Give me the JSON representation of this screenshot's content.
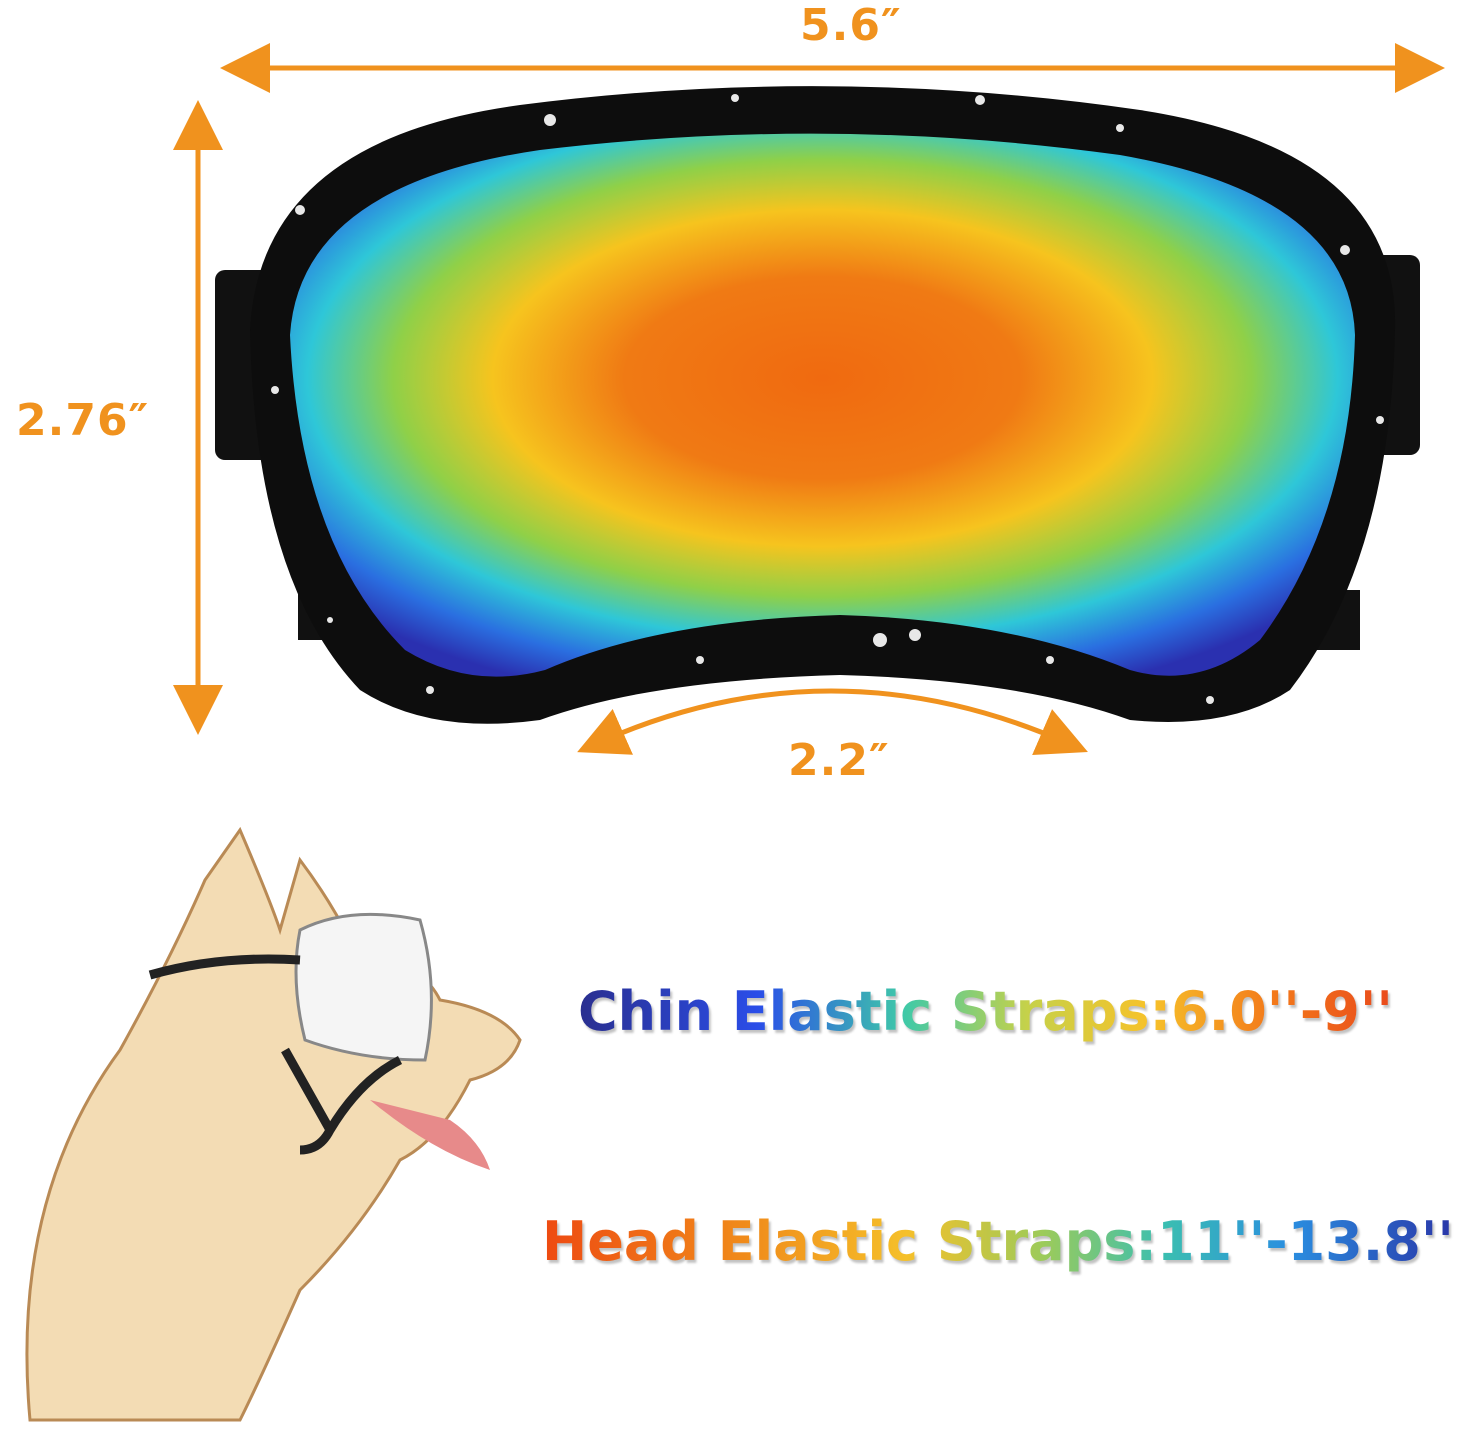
{
  "dimensions": {
    "width": "5.6″",
    "height": "2.76″",
    "nose_bridge": "2.2″"
  },
  "specs": {
    "chin": "Chin Elastic Straps:6.0''-9''",
    "head": "Head Elastic Straps:11''-13.8''"
  },
  "colors": {
    "dimension_accent": "#f0921e",
    "frame": "#0d0d0d"
  }
}
